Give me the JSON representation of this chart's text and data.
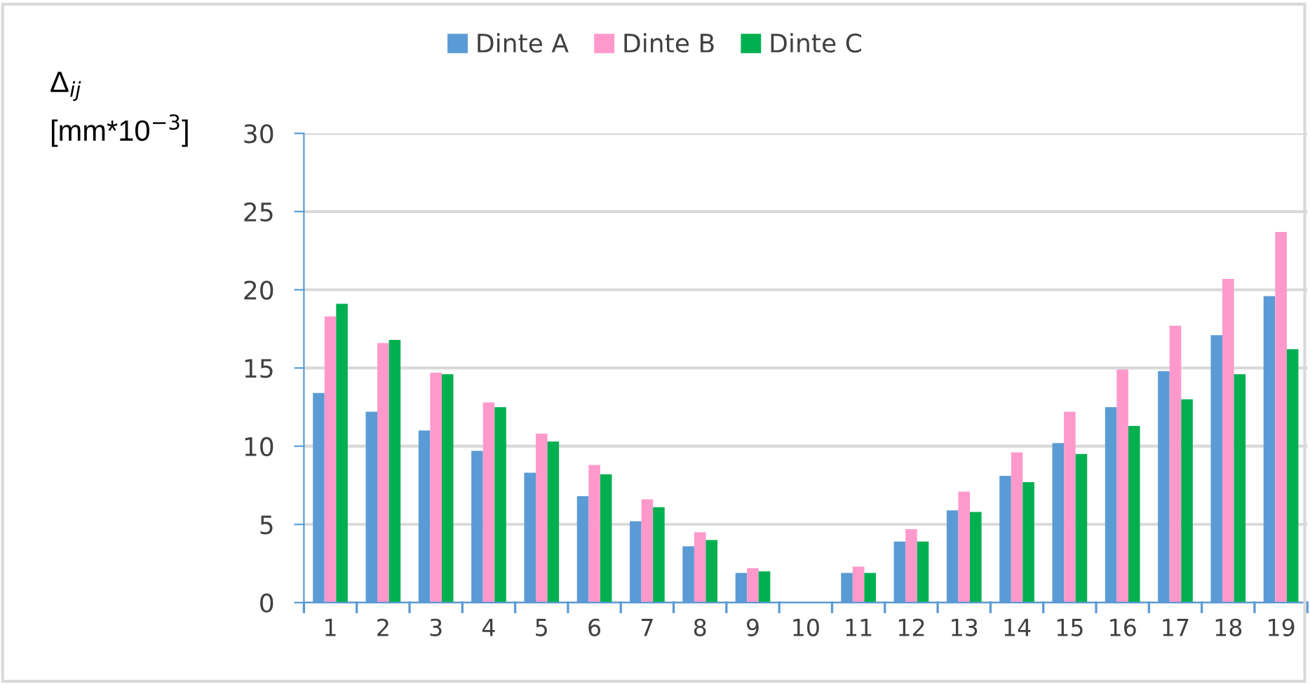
{
  "chart_data": {
    "type": "bar",
    "ylabel": "Δ$_{ij}$\n[mm*10$^{−3}$]",
    "categories": [
      "1",
      "2",
      "3",
      "4",
      "5",
      "6",
      "7",
      "8",
      "9",
      "10",
      "11",
      "12",
      "13",
      "14",
      "15",
      "16",
      "17",
      "18",
      "19"
    ],
    "series": [
      {
        "name": "Dinte A",
        "color": "#5b9bd5",
        "values": [
          13.4,
          12.2,
          11.0,
          9.7,
          8.3,
          6.8,
          5.2,
          3.6,
          1.9,
          0,
          1.9,
          3.9,
          5.9,
          8.1,
          10.2,
          12.5,
          14.8,
          17.1,
          19.6
        ]
      },
      {
        "name": "Dinte B",
        "color": "#ff99cc",
        "values": [
          18.3,
          16.6,
          14.7,
          12.8,
          10.8,
          8.8,
          6.6,
          4.5,
          2.2,
          0,
          2.3,
          4.7,
          7.1,
          9.6,
          12.2,
          14.9,
          17.7,
          20.7,
          23.7
        ]
      },
      {
        "name": "Dinte C",
        "color": "#00b050",
        "values": [
          19.1,
          16.8,
          14.6,
          12.5,
          10.3,
          8.2,
          6.1,
          4.0,
          2.0,
          0,
          1.9,
          3.9,
          5.8,
          7.7,
          9.5,
          11.3,
          13.0,
          14.6,
          16.2
        ]
      }
    ],
    "ylim": [
      0,
      30
    ],
    "yticks": [
      0,
      5,
      10,
      15,
      20,
      25,
      30
    ],
    "grid": "y",
    "legend": "top"
  }
}
